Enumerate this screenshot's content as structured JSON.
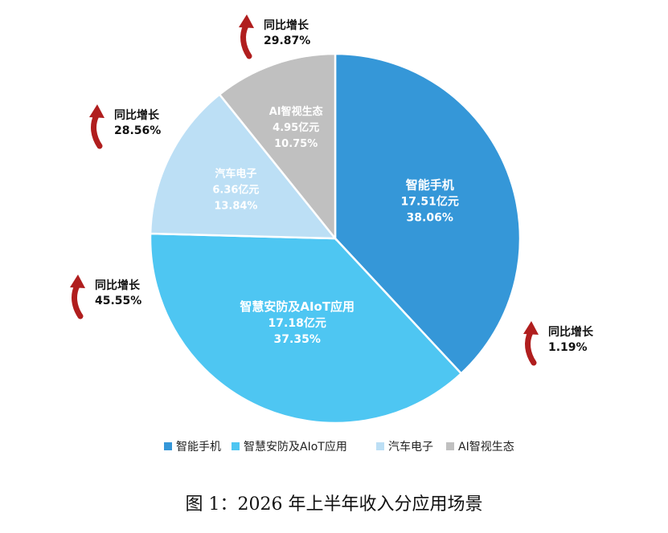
{
  "chart_data": {
    "type": "pie",
    "categories": [
      "智能手机",
      "智慧安防及AIoT应用",
      "汽车电子",
      "AI智视生态"
    ],
    "values": [
      17.51,
      17.18,
      6.36,
      4.95
    ],
    "value_labels": [
      "17.51亿元",
      "17.18亿元",
      "6.36亿元",
      "4.95亿元"
    ],
    "percent_labels": [
      "38.06%",
      "37.35%",
      "13.84%",
      "10.75%"
    ],
    "percents": [
      38.06,
      37.35,
      13.84,
      10.75
    ],
    "colors": [
      "#3597d8",
      "#4ec6f2",
      "#bcdff5",
      "#c0c0c0"
    ],
    "growth_title": "同比增长",
    "growth_values": [
      "1.19%",
      "45.55%",
      "28.56%",
      "29.87%"
    ],
    "growth_arrow_color": "#b01e1e",
    "legend_position": "bottom"
  },
  "caption": "图 1：2026 年上半年收入分应用场景"
}
